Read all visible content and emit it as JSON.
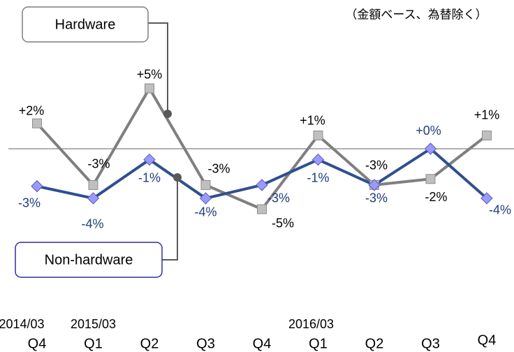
{
  "chart_data": {
    "type": "line",
    "annotation": "（金額ベース、為替除く）",
    "categories": [
      "Q4",
      "Q1",
      "Q2",
      "Q3",
      "Q4",
      "Q1",
      "Q2",
      "Q3",
      "Q4"
    ],
    "year_labels": [
      "2014/03",
      "2015/03",
      null,
      null,
      null,
      "2016/03",
      null,
      null,
      null
    ],
    "ylim": [
      -6,
      6
    ],
    "series": [
      {
        "name": "Hardware",
        "color": "#7f7f7f",
        "marker_color": "#bfbfbf",
        "marker": "square",
        "values": [
          2.1,
          -3,
          5,
          -3,
          -5,
          1.1,
          -3,
          -2.5,
          1.1
        ],
        "value_labels": [
          "+2%",
          "-3%",
          "+5%",
          "-3%",
          "-5%",
          "+1%",
          "-3%",
          "-2%",
          "+1%"
        ]
      },
      {
        "name": "Non-hardware",
        "color": "#2f4f8f",
        "marker_color": "#9999ff",
        "marker": "diamond",
        "values": [
          -3.1,
          -4.1,
          -0.9,
          -4.1,
          -3,
          -0.9,
          -3,
          0,
          -4.1
        ],
        "value_labels": [
          "-3%",
          "-4%",
          "-1%",
          "-4%",
          "-3%",
          "-1%",
          "-3%",
          "+0%",
          "-4%"
        ]
      }
    ]
  }
}
